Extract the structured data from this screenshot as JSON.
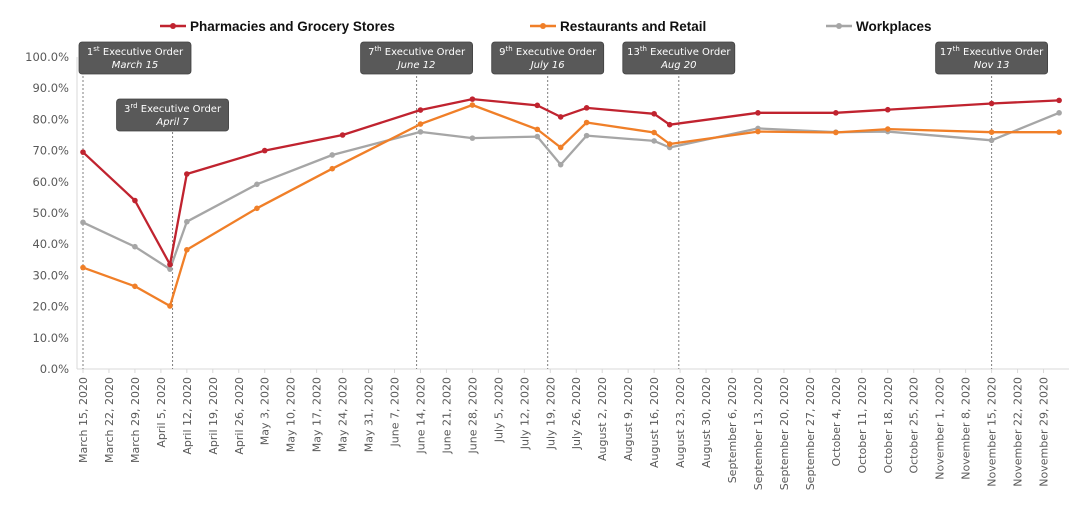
{
  "chart_data": {
    "type": "line",
    "ylim": [
      0,
      100
    ],
    "y_ticks": [
      "0.0%",
      "10.0%",
      "20.0%",
      "30.0%",
      "40.0%",
      "50.0%",
      "60.0%",
      "70.0%",
      "80.0%",
      "90.0%",
      "100.0%"
    ],
    "categories": [
      "March 15, 2020",
      "March 22, 2020",
      "March 29, 2020",
      "April 5, 2020",
      "April 12, 2020",
      "April 19, 2020",
      "April 26, 2020",
      "May 3, 2020",
      "May 10, 2020",
      "May 17, 2020",
      "May 24, 2020",
      "May 31, 2020",
      "June 7, 2020",
      "June 14, 2020",
      "June 21, 2020",
      "June 28, 2020",
      "July 5, 2020",
      "July 12, 2020",
      "July 19, 2020",
      "July 26, 2020",
      "August 2, 2020",
      "August 9, 2020",
      "August 16, 2020",
      "August 23, 2020",
      "August 30, 2020",
      "September 6, 2020",
      "September 13, 2020",
      "September 20, 2020",
      "September 27, 2020",
      "October 4, 2020",
      "October 11, 2020",
      "October 18, 2020",
      "October 25, 2020",
      "November 1, 2020",
      "November 8, 2020",
      "November 15, 2020",
      "November 22, 2020",
      "November 29, 2020"
    ],
    "legend_position": "top",
    "grid": false,
    "series": [
      {
        "name": "Pharmacies and Grocery Stores",
        "color": "#C0232F",
        "points": [
          [
            0,
            69.5
          ],
          [
            2,
            54.0
          ],
          [
            3.35,
            33.5
          ],
          [
            4,
            62.5
          ],
          [
            7,
            70.0
          ],
          [
            10,
            75.0
          ],
          [
            13,
            83.0
          ],
          [
            15,
            86.5
          ],
          [
            17.5,
            84.5
          ],
          [
            18.4,
            80.8
          ],
          [
            19.4,
            83.7
          ],
          [
            22,
            81.8
          ],
          [
            22.6,
            78.3
          ],
          [
            26,
            82.1
          ],
          [
            29,
            82.1
          ],
          [
            31,
            83.1
          ],
          [
            35,
            85.1
          ],
          [
            37.6,
            86.1
          ]
        ]
      },
      {
        "name": "Restaurants and Retail",
        "color": "#F07F28",
        "points": [
          [
            0,
            32.5
          ],
          [
            2,
            26.5
          ],
          [
            3.35,
            20.2
          ],
          [
            4,
            38.2
          ],
          [
            6.7,
            51.5
          ],
          [
            9.6,
            64.2
          ],
          [
            13,
            78.5
          ],
          [
            15,
            84.6
          ],
          [
            17.5,
            76.8
          ],
          [
            18.4,
            71.0
          ],
          [
            19.4,
            79.0
          ],
          [
            22,
            75.8
          ],
          [
            22.6,
            72.1
          ],
          [
            26,
            76.1
          ],
          [
            29,
            75.8
          ],
          [
            31,
            76.9
          ],
          [
            35,
            75.9
          ],
          [
            37.6,
            75.9
          ]
        ]
      },
      {
        "name": "Workplaces",
        "color": "#A6A6A6",
        "points": [
          [
            0,
            47.0
          ],
          [
            2,
            39.2
          ],
          [
            3.35,
            32.0
          ],
          [
            4,
            47.2
          ],
          [
            6.7,
            59.2
          ],
          [
            9.6,
            68.6
          ],
          [
            13,
            76.0
          ],
          [
            15,
            74.0
          ],
          [
            17.5,
            74.5
          ],
          [
            18.4,
            65.5
          ],
          [
            19.4,
            74.8
          ],
          [
            22,
            73.1
          ],
          [
            22.6,
            71.0
          ],
          [
            26,
            77.1
          ],
          [
            29,
            75.9
          ],
          [
            31,
            76.1
          ],
          [
            35,
            73.3
          ],
          [
            37.6,
            82.1
          ]
        ]
      }
    ],
    "annotations": [
      {
        "x": 0,
        "ord": "1",
        "sup": "st",
        "title": "Executive Order",
        "date": "March 15",
        "level": 1
      },
      {
        "x": 3.45,
        "ord": "3",
        "sup": "rd",
        "title": "Executive Order",
        "date": "April 7",
        "level": 2
      },
      {
        "x": 12.85,
        "ord": "7",
        "sup": "th",
        "title": "Executive Order",
        "date": "June 12",
        "level": 1
      },
      {
        "x": 17.9,
        "ord": "9",
        "sup": "th",
        "title": "Executive Order",
        "date": "July 16",
        "level": 1
      },
      {
        "x": 22.95,
        "ord": "13",
        "sup": "th",
        "title": "Executive Order",
        "date": "Aug 20",
        "level": 1
      },
      {
        "x": 35.0,
        "ord": "17",
        "sup": "th",
        "title": "Executive Order",
        "date": "Nov 13",
        "level": 1
      }
    ]
  }
}
